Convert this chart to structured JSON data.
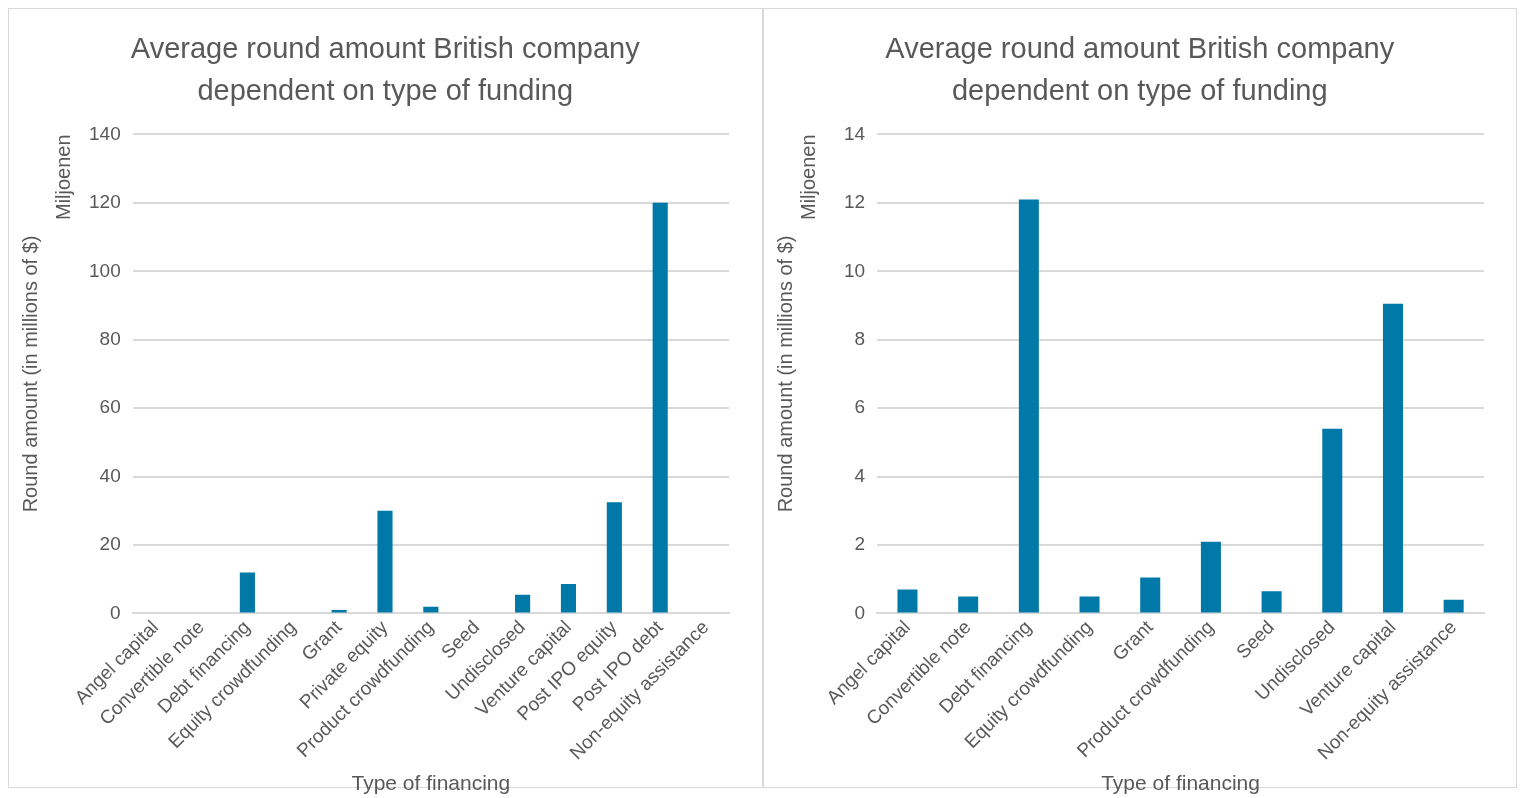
{
  "chart_data": [
    {
      "type": "bar",
      "title": "Average round amount British company dependent on type of funding",
      "xlabel": "Type of financing",
      "ylabel": "Round amount (in millions of $)",
      "annotations": [
        "Miljoenen"
      ],
      "categories": [
        "Angel capital",
        "Convertible note",
        "Debt financing",
        "Equity crowdfunding",
        "Grant",
        "Private equity",
        "Product crowdfunding",
        "Seed",
        "Undisclosed",
        "Venture capital",
        "Post IPO equity",
        "Post IPO debt",
        "Non-equity assistance"
      ],
      "values": [
        0,
        0,
        12,
        0,
        1,
        30,
        2,
        0,
        5.5,
        8.6,
        32.5,
        120,
        0
      ],
      "color": "#0179a8",
      "ylim": [
        0,
        140
      ],
      "yticks": [
        0,
        20,
        40,
        60,
        80,
        100,
        120,
        140
      ],
      "grid": "y",
      "legend": false
    },
    {
      "type": "bar",
      "title": "Average round amount British company dependent on type of funding",
      "xlabel": "Type of financing",
      "ylabel": "Round amount (in millions of $)",
      "annotations": [
        "Miljoenen"
      ],
      "categories": [
        "Angel capital",
        "Convertible note",
        "Debt financing",
        "Equity crowdfunding",
        "Grant",
        "Product crowdfunding",
        "Seed",
        "Undisclosed",
        "Venture capital",
        "Non-equity assistance"
      ],
      "values": [
        0.7,
        0.5,
        12.1,
        0.5,
        1.05,
        2.1,
        0.65,
        5.4,
        9.05,
        0.4
      ],
      "color": "#0179a8",
      "ylim": [
        0,
        14
      ],
      "yticks": [
        0,
        2,
        4,
        6,
        8,
        10,
        12,
        14
      ],
      "grid": "y",
      "legend": false
    }
  ]
}
